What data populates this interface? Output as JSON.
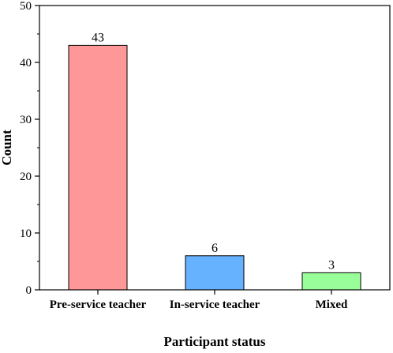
{
  "chart_data": {
    "type": "bar",
    "categories": [
      "Pre-service teacher",
      "In-service teacher",
      "Mixed"
    ],
    "values": [
      43,
      6,
      3
    ],
    "data_labels": [
      "43",
      "6",
      "3"
    ],
    "colors": [
      "#fe9797",
      "#66b2ff",
      "#99fe99"
    ],
    "title": "",
    "xlabel": "Participant status",
    "ylabel": "Count",
    "ylim": [
      0,
      50
    ],
    "yticks": [
      0,
      10,
      20,
      30,
      40,
      50
    ],
    "grid": false,
    "legend": "none"
  }
}
